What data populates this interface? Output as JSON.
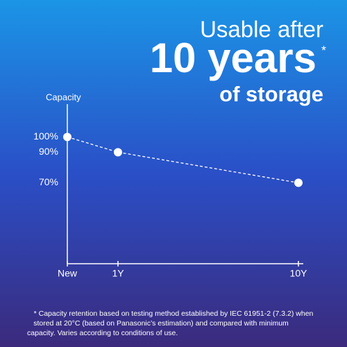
{
  "chart_data": {
    "type": "line",
    "title": {
      "line1": "Usable after",
      "line2": "10 years",
      "asterisk": "*",
      "line3": "of storage"
    },
    "y_label": "Capacity",
    "categories": [
      "New",
      "1Y",
      "10Y"
    ],
    "values": [
      100,
      90,
      70
    ],
    "color": "#ffffff",
    "ylim": [
      17,
      121.5
    ],
    "yticks": [
      {
        "value": 100,
        "label": "100%"
      },
      {
        "value": 90,
        "label": "90%"
      },
      {
        "value": 70,
        "label": "70%"
      }
    ],
    "grid": false,
    "footnote": [
      "* Capacity retention based on testing method established by IEC 61951-2 (7.3.2) when",
      "stored at 20°C (based on Panasonic’s estimation) and compared with minimum",
      "capacity. Varies according to conditions of use."
    ]
  }
}
